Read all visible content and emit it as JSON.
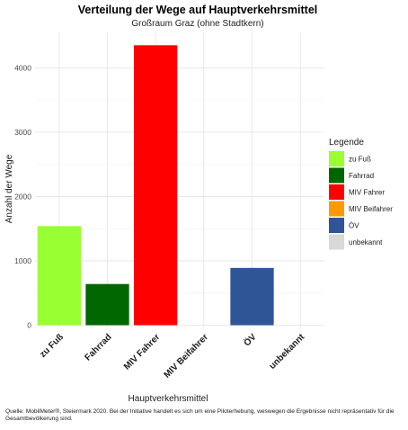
{
  "chart_data": {
    "type": "bar",
    "title": "Verteilung der Wege auf Hauptverkehrsmittel",
    "subtitle": "Großraum Graz (ohne Stadtkern)",
    "xlabel": "Hauptverkehrsmittel",
    "ylabel": "Anzahl der Wege",
    "categories": [
      "zu Fuß",
      "Fahrrad",
      "MIV Fahrer",
      "MIV Beifahrer",
      "ÖV",
      "unbekannt"
    ],
    "values": [
      1540,
      640,
      4350,
      0,
      890,
      0
    ],
    "colors": [
      "#99ff33",
      "#006600",
      "#ff0000",
      "#ff9900",
      "#2f5597",
      "#d9d9d9"
    ],
    "ylim": [
      0,
      4550
    ],
    "yticks": [
      0,
      1000,
      2000,
      3000,
      4000
    ],
    "grid": true,
    "legend": {
      "title": "Legende",
      "position": "right",
      "entries": [
        "zu Fuß",
        "Fahrrad",
        "MIV Fahrer",
        "MIV Beifahrer",
        "ÖV",
        "unbekannt"
      ]
    }
  },
  "caption": "Quelle: MobilMeter®, Steiermark 2020. Bei der Initiative handelt es sich um eine Piloterhebung, weswegen die Ergebnisse nicht repräsentativ für die Gesamtbevölkerung sind."
}
